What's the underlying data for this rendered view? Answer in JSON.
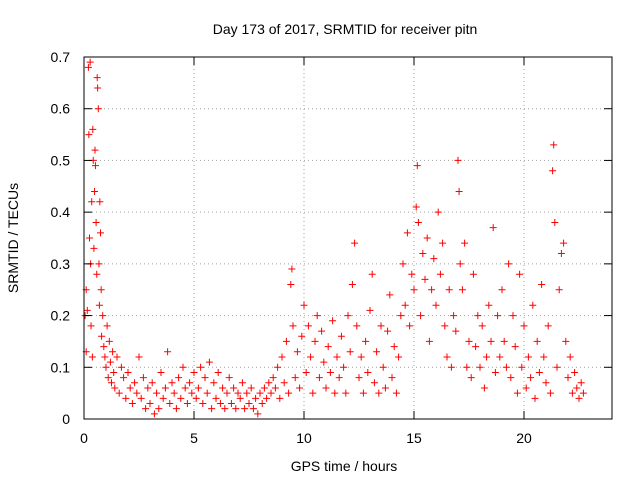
{
  "chart_data": {
    "type": "scatter",
    "title": "Day 173 of 2017, SRMTID for receiver pitn",
    "xlabel": "GPS time / hours",
    "ylabel": "SRMTID / TECUs",
    "xlim": [
      0,
      24
    ],
    "ylim": [
      0,
      0.7
    ],
    "xticks": [
      "0",
      "5",
      "10",
      "15",
      "20"
    ],
    "yticks": [
      "0",
      "0.1",
      "0.2",
      "0.3",
      "0.4",
      "0.5",
      "0.6",
      "0.7"
    ],
    "grid": true,
    "marker": "plus",
    "color": "#ff0000",
    "series": [
      {
        "name": "SRMTID",
        "points": [
          [
            0.05,
            0.2
          ],
          [
            0.1,
            0.25
          ],
          [
            0.1,
            0.13
          ],
          [
            0.15,
            0.21
          ],
          [
            0.2,
            0.68
          ],
          [
            0.22,
            0.55
          ],
          [
            0.25,
            0.35
          ],
          [
            0.28,
            0.69
          ],
          [
            0.3,
            0.3
          ],
          [
            0.32,
            0.18
          ],
          [
            0.35,
            0.42
          ],
          [
            0.38,
            0.12
          ],
          [
            0.4,
            0.56
          ],
          [
            0.42,
            0.5
          ],
          [
            0.45,
            0.33
          ],
          [
            0.48,
            0.44
          ],
          [
            0.5,
            0.52
          ],
          [
            0.52,
            0.49
          ],
          [
            0.55,
            0.38
          ],
          [
            0.58,
            0.28
          ],
          [
            0.6,
            0.66
          ],
          [
            0.62,
            0.64
          ],
          [
            0.65,
            0.6
          ],
          [
            0.68,
            0.3
          ],
          [
            0.7,
            0.22
          ],
          [
            0.72,
            0.42
          ],
          [
            0.75,
            0.36
          ],
          [
            0.78,
            0.25
          ],
          [
            0.8,
            0.16
          ],
          [
            0.85,
            0.2
          ],
          [
            0.9,
            0.14
          ],
          [
            0.95,
            0.12
          ],
          [
            1.0,
            0.1
          ],
          [
            1.05,
            0.18
          ],
          [
            1.1,
            0.08
          ],
          [
            1.15,
            0.15
          ],
          [
            1.2,
            0.11
          ],
          [
            1.25,
            0.07
          ],
          [
            1.3,
            0.13
          ],
          [
            1.35,
            0.09
          ],
          [
            1.4,
            0.06
          ],
          [
            1.5,
            0.12
          ],
          [
            1.6,
            0.05
          ],
          [
            1.7,
            0.1
          ],
          [
            1.8,
            0.08
          ],
          [
            1.9,
            0.04
          ],
          [
            2.0,
            0.09
          ],
          [
            2.1,
            0.06
          ],
          [
            2.2,
            0.03
          ],
          [
            2.3,
            0.07
          ],
          [
            2.4,
            0.05
          ],
          [
            2.5,
            0.12
          ],
          [
            2.6,
            0.04
          ],
          [
            2.7,
            0.08
          ],
          [
            2.8,
            0.02
          ],
          [
            2.9,
            0.06
          ],
          [
            3.0,
            0.03
          ],
          [
            3.1,
            0.07
          ],
          [
            3.2,
            0.01
          ],
          [
            3.3,
            0.05
          ],
          [
            3.4,
            0.02
          ],
          [
            3.5,
            0.09
          ],
          [
            3.6,
            0.04
          ],
          [
            3.7,
            0.06
          ],
          [
            3.8,
            0.13
          ],
          [
            3.9,
            0.03
          ],
          [
            4.0,
            0.07
          ],
          [
            4.1,
            0.05
          ],
          [
            4.2,
            0.02
          ],
          [
            4.3,
            0.08
          ],
          [
            4.4,
            0.04
          ],
          [
            4.5,
            0.1
          ],
          [
            4.6,
            0.06
          ],
          [
            4.7,
            0.03
          ],
          [
            4.8,
            0.07
          ],
          [
            4.9,
            0.05
          ],
          [
            5.0,
            0.09
          ],
          [
            5.1,
            0.04
          ],
          [
            5.2,
            0.06
          ],
          [
            5.3,
            0.1
          ],
          [
            5.4,
            0.03
          ],
          [
            5.5,
            0.08
          ],
          [
            5.6,
            0.05
          ],
          [
            5.7,
            0.11
          ],
          [
            5.8,
            0.02
          ],
          [
            5.9,
            0.07
          ],
          [
            6.0,
            0.04
          ],
          [
            6.1,
            0.09
          ],
          [
            6.2,
            0.03
          ],
          [
            6.3,
            0.06
          ],
          [
            6.4,
            0.02
          ],
          [
            6.5,
            0.05
          ],
          [
            6.6,
            0.08
          ],
          [
            6.7,
            0.03
          ],
          [
            6.8,
            0.06
          ],
          [
            6.9,
            0.02
          ],
          [
            7.0,
            0.05
          ],
          [
            7.1,
            0.04
          ],
          [
            7.2,
            0.07
          ],
          [
            7.3,
            0.02
          ],
          [
            7.4,
            0.05
          ],
          [
            7.5,
            0.03
          ],
          [
            7.6,
            0.06
          ],
          [
            7.7,
            0.02
          ],
          [
            7.8,
            0.04
          ],
          [
            7.9,
            0.01
          ],
          [
            8.0,
            0.05
          ],
          [
            8.1,
            0.03
          ],
          [
            8.2,
            0.06
          ],
          [
            8.3,
            0.04
          ],
          [
            8.4,
            0.07
          ],
          [
            8.5,
            0.05
          ],
          [
            8.6,
            0.08
          ],
          [
            8.7,
            0.06
          ],
          [
            8.8,
            0.1
          ],
          [
            8.9,
            0.04
          ],
          [
            9.0,
            0.12
          ],
          [
            9.1,
            0.07
          ],
          [
            9.2,
            0.15
          ],
          [
            9.3,
            0.05
          ],
          [
            9.4,
            0.26
          ],
          [
            9.45,
            0.29
          ],
          [
            9.5,
            0.18
          ],
          [
            9.6,
            0.08
          ],
          [
            9.7,
            0.13
          ],
          [
            9.8,
            0.06
          ],
          [
            9.9,
            0.16
          ],
          [
            10.0,
            0.22
          ],
          [
            10.1,
            0.09
          ],
          [
            10.2,
            0.18
          ],
          [
            10.3,
            0.12
          ],
          [
            10.4,
            0.05
          ],
          [
            10.5,
            0.15
          ],
          [
            10.6,
            0.2
          ],
          [
            10.7,
            0.08
          ],
          [
            10.8,
            0.17
          ],
          [
            10.9,
            0.11
          ],
          [
            11.0,
            0.06
          ],
          [
            11.1,
            0.14
          ],
          [
            11.2,
            0.09
          ],
          [
            11.3,
            0.19
          ],
          [
            11.4,
            0.05
          ],
          [
            11.5,
            0.12
          ],
          [
            11.6,
            0.08
          ],
          [
            11.7,
            0.16
          ],
          [
            11.8,
            0.1
          ],
          [
            11.9,
            0.05
          ],
          [
            12.0,
            0.2
          ],
          [
            12.1,
            0.13
          ],
          [
            12.2,
            0.26
          ],
          [
            12.3,
            0.34
          ],
          [
            12.4,
            0.18
          ],
          [
            12.5,
            0.08
          ],
          [
            12.6,
            0.12
          ],
          [
            12.7,
            0.05
          ],
          [
            12.8,
            0.15
          ],
          [
            12.9,
            0.09
          ],
          [
            13.0,
            0.21
          ],
          [
            13.1,
            0.28
          ],
          [
            13.2,
            0.07
          ],
          [
            13.3,
            0.13
          ],
          [
            13.4,
            0.05
          ],
          [
            13.5,
            0.18
          ],
          [
            13.6,
            0.1
          ],
          [
            13.7,
            0.06
          ],
          [
            13.8,
            0.17
          ],
          [
            13.9,
            0.24
          ],
          [
            14.0,
            0.08
          ],
          [
            14.1,
            0.14
          ],
          [
            14.2,
            0.05
          ],
          [
            14.3,
            0.12
          ],
          [
            14.4,
            0.2
          ],
          [
            14.5,
            0.3
          ],
          [
            14.6,
            0.22
          ],
          [
            14.7,
            0.36
          ],
          [
            14.8,
            0.18
          ],
          [
            14.9,
            0.28
          ],
          [
            15.0,
            0.25
          ],
          [
            15.1,
            0.41
          ],
          [
            15.15,
            0.49
          ],
          [
            15.2,
            0.38
          ],
          [
            15.3,
            0.2
          ],
          [
            15.4,
            0.32
          ],
          [
            15.5,
            0.27
          ],
          [
            15.6,
            0.35
          ],
          [
            15.7,
            0.15
          ],
          [
            15.8,
            0.25
          ],
          [
            15.9,
            0.31
          ],
          [
            16.0,
            0.22
          ],
          [
            16.1,
            0.4
          ],
          [
            16.2,
            0.28
          ],
          [
            16.3,
            0.34
          ],
          [
            16.4,
            0.18
          ],
          [
            16.5,
            0.12
          ],
          [
            16.6,
            0.25
          ],
          [
            16.7,
            0.1
          ],
          [
            16.8,
            0.2
          ],
          [
            16.9,
            0.17
          ],
          [
            17.0,
            0.5
          ],
          [
            17.05,
            0.44
          ],
          [
            17.1,
            0.3
          ],
          [
            17.2,
            0.25
          ],
          [
            17.3,
            0.34
          ],
          [
            17.4,
            0.1
          ],
          [
            17.5,
            0.15
          ],
          [
            17.6,
            0.08
          ],
          [
            17.7,
            0.28
          ],
          [
            17.8,
            0.14
          ],
          [
            17.9,
            0.2
          ],
          [
            18.0,
            0.1
          ],
          [
            18.1,
            0.18
          ],
          [
            18.2,
            0.06
          ],
          [
            18.3,
            0.12
          ],
          [
            18.4,
            0.22
          ],
          [
            18.5,
            0.15
          ],
          [
            18.6,
            0.37
          ],
          [
            18.7,
            0.09
          ],
          [
            18.8,
            0.2
          ],
          [
            18.9,
            0.12
          ],
          [
            19.0,
            0.25
          ],
          [
            19.1,
            0.15
          ],
          [
            19.2,
            0.1
          ],
          [
            19.3,
            0.3
          ],
          [
            19.4,
            0.08
          ],
          [
            19.5,
            0.2
          ],
          [
            19.6,
            0.14
          ],
          [
            19.7,
            0.05
          ],
          [
            19.8,
            0.28
          ],
          [
            19.9,
            0.1
          ],
          [
            20.0,
            0.18
          ],
          [
            20.1,
            0.06
          ],
          [
            20.2,
            0.12
          ],
          [
            20.3,
            0.08
          ],
          [
            20.4,
            0.22
          ],
          [
            20.5,
            0.04
          ],
          [
            20.6,
            0.15
          ],
          [
            20.7,
            0.09
          ],
          [
            20.8,
            0.26
          ],
          [
            20.9,
            0.12
          ],
          [
            21.0,
            0.07
          ],
          [
            21.1,
            0.18
          ],
          [
            21.2,
            0.05
          ],
          [
            21.3,
            0.48
          ],
          [
            21.35,
            0.53
          ],
          [
            21.4,
            0.38
          ],
          [
            21.5,
            0.1
          ],
          [
            21.6,
            0.25
          ],
          [
            21.7,
            0.32
          ],
          [
            21.8,
            0.34
          ],
          [
            21.9,
            0.15
          ],
          [
            22.0,
            0.08
          ],
          [
            22.1,
            0.12
          ],
          [
            22.2,
            0.05
          ],
          [
            22.3,
            0.09
          ],
          [
            22.4,
            0.06
          ],
          [
            22.5,
            0.04
          ],
          [
            22.6,
            0.07
          ],
          [
            22.7,
            0.05
          ]
        ]
      }
    ]
  }
}
